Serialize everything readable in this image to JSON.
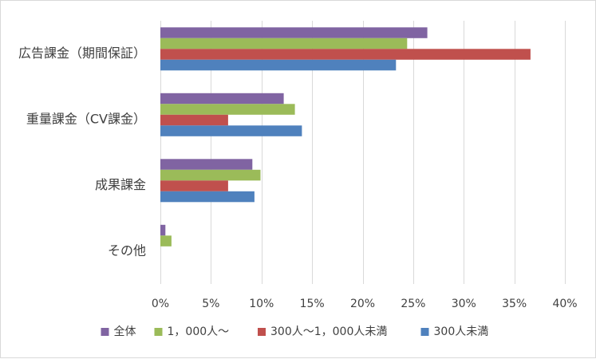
{
  "chart_data": {
    "type": "bar",
    "orientation": "horizontal",
    "title": "",
    "xlabel": "",
    "ylabel": "",
    "xlim": [
      0,
      40
    ],
    "x_ticks": [
      0,
      5,
      10,
      15,
      20,
      25,
      30,
      35,
      40
    ],
    "x_tick_labels": [
      "0%",
      "5%",
      "10%",
      "15%",
      "20%",
      "25%",
      "30%",
      "35%",
      "40%"
    ],
    "grid": true,
    "legend_position": "bottom",
    "categories": [
      "広告課金（期間保証）",
      "重量課金（CV課金）",
      "成果課金",
      "その他"
    ],
    "series": [
      {
        "name": "全体",
        "color": "#8064a2",
        "values": [
          26.4,
          12.2,
          9.1,
          0.5
        ]
      },
      {
        "name": "1，000人～",
        "color": "#9bbb59",
        "values": [
          24.4,
          13.3,
          9.9,
          1.1
        ]
      },
      {
        "name": "300人～1，000人未満",
        "color": "#c0504d",
        "values": [
          36.6,
          6.7,
          6.7,
          0
        ]
      },
      {
        "name": "300人未満",
        "color": "#4f81bd",
        "values": [
          23.3,
          14.0,
          9.3,
          0
        ]
      }
    ]
  }
}
